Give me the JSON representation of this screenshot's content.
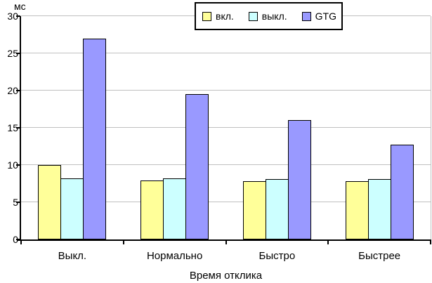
{
  "chart_data": {
    "type": "bar",
    "title": "",
    "unit_label": "мс",
    "xlabel": "Время отклика",
    "ylabel": "",
    "categories": [
      "Выкл.",
      "Нормально",
      "Быстро",
      "Быстрее"
    ],
    "series": [
      {
        "name": "вкл.",
        "color": "#ffff99",
        "values": [
          10,
          7.9,
          7.8,
          7.8
        ]
      },
      {
        "name": "выкл.",
        "color": "#ccffff",
        "values": [
          8.2,
          8.2,
          8.1,
          8.1
        ]
      },
      {
        "name": "GTG",
        "color": "#9999ff",
        "values": [
          27,
          19.5,
          16,
          12.7
        ]
      }
    ],
    "ylim": [
      0,
      30
    ],
    "ytick_step": 5,
    "yticks": [
      0,
      5,
      10,
      15,
      20,
      25,
      30
    ],
    "grid": true,
    "legend_position": "top-center",
    "colors": {
      "background": "#ffffff",
      "gridline": "#c0c0c0",
      "axis": "#000000",
      "bar_border": "#000000"
    }
  }
}
